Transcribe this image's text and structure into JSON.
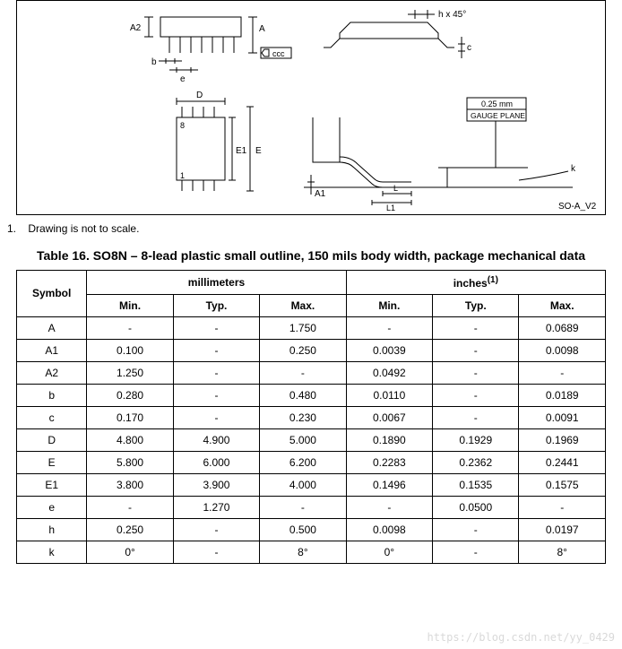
{
  "diagram": {
    "version_label": "SO-A_V2",
    "labels": {
      "A": "A",
      "A1": "A1",
      "A2": "A2",
      "b": "b",
      "c": "c",
      "ccc": "ccc",
      "D": "D",
      "E": "E",
      "E1": "E1",
      "e": "e",
      "h": "h x 45°",
      "k": "k",
      "L": "L",
      "L1": "L1",
      "pin1": "1",
      "pin8": "8",
      "gauge1": "0.25 mm",
      "gauge2": "GAUGE PLANE"
    },
    "colors": {
      "stroke": "#000000",
      "fill_bg": "#ffffff"
    }
  },
  "note": {
    "num": "1.",
    "text": "Drawing is not to scale."
  },
  "table": {
    "title": "Table 16. SO8N – 8-lead plastic small outline, 150 mils body width, package mechanical data",
    "headers": {
      "symbol": "Symbol",
      "unit_mm": "millimeters",
      "unit_in": "inches",
      "unit_in_sup": "(1)",
      "min": "Min.",
      "typ": "Typ.",
      "max": "Max."
    },
    "rows": [
      {
        "sym": "A",
        "mm_min": "-",
        "mm_typ": "-",
        "mm_max": "1.750",
        "in_min": "-",
        "in_typ": "-",
        "in_max": "0.0689"
      },
      {
        "sym": "A1",
        "mm_min": "0.100",
        "mm_typ": "-",
        "mm_max": "0.250",
        "in_min": "0.0039",
        "in_typ": "-",
        "in_max": "0.0098"
      },
      {
        "sym": "A2",
        "mm_min": "1.250",
        "mm_typ": "-",
        "mm_max": "-",
        "in_min": "0.0492",
        "in_typ": "-",
        "in_max": "-"
      },
      {
        "sym": "b",
        "mm_min": "0.280",
        "mm_typ": "-",
        "mm_max": "0.480",
        "in_min": "0.0110",
        "in_typ": "-",
        "in_max": "0.0189"
      },
      {
        "sym": "c",
        "mm_min": "0.170",
        "mm_typ": "-",
        "mm_max": "0.230",
        "in_min": "0.0067",
        "in_typ": "-",
        "in_max": "0.0091"
      },
      {
        "sym": "D",
        "mm_min": "4.800",
        "mm_typ": "4.900",
        "mm_max": "5.000",
        "in_min": "0.1890",
        "in_typ": "0.1929",
        "in_max": "0.1969"
      },
      {
        "sym": "E",
        "mm_min": "5.800",
        "mm_typ": "6.000",
        "mm_max": "6.200",
        "in_min": "0.2283",
        "in_typ": "0.2362",
        "in_max": "0.2441"
      },
      {
        "sym": "E1",
        "mm_min": "3.800",
        "mm_typ": "3.900",
        "mm_max": "4.000",
        "in_min": "0.1496",
        "in_typ": "0.1535",
        "in_max": "0.1575"
      },
      {
        "sym": "e",
        "mm_min": "-",
        "mm_typ": "1.270",
        "mm_max": "-",
        "in_min": "-",
        "in_typ": "0.0500",
        "in_max": "-"
      },
      {
        "sym": "h",
        "mm_min": "0.250",
        "mm_typ": "-",
        "mm_max": "0.500",
        "in_min": "0.0098",
        "in_typ": "-",
        "in_max": "0.0197"
      },
      {
        "sym": "k",
        "mm_min": "0°",
        "mm_typ": "-",
        "mm_max": "8°",
        "in_min": "0°",
        "in_typ": "-",
        "in_max": "8°"
      }
    ]
  },
  "watermark": "https://blog.csdn.net/yy_0429"
}
